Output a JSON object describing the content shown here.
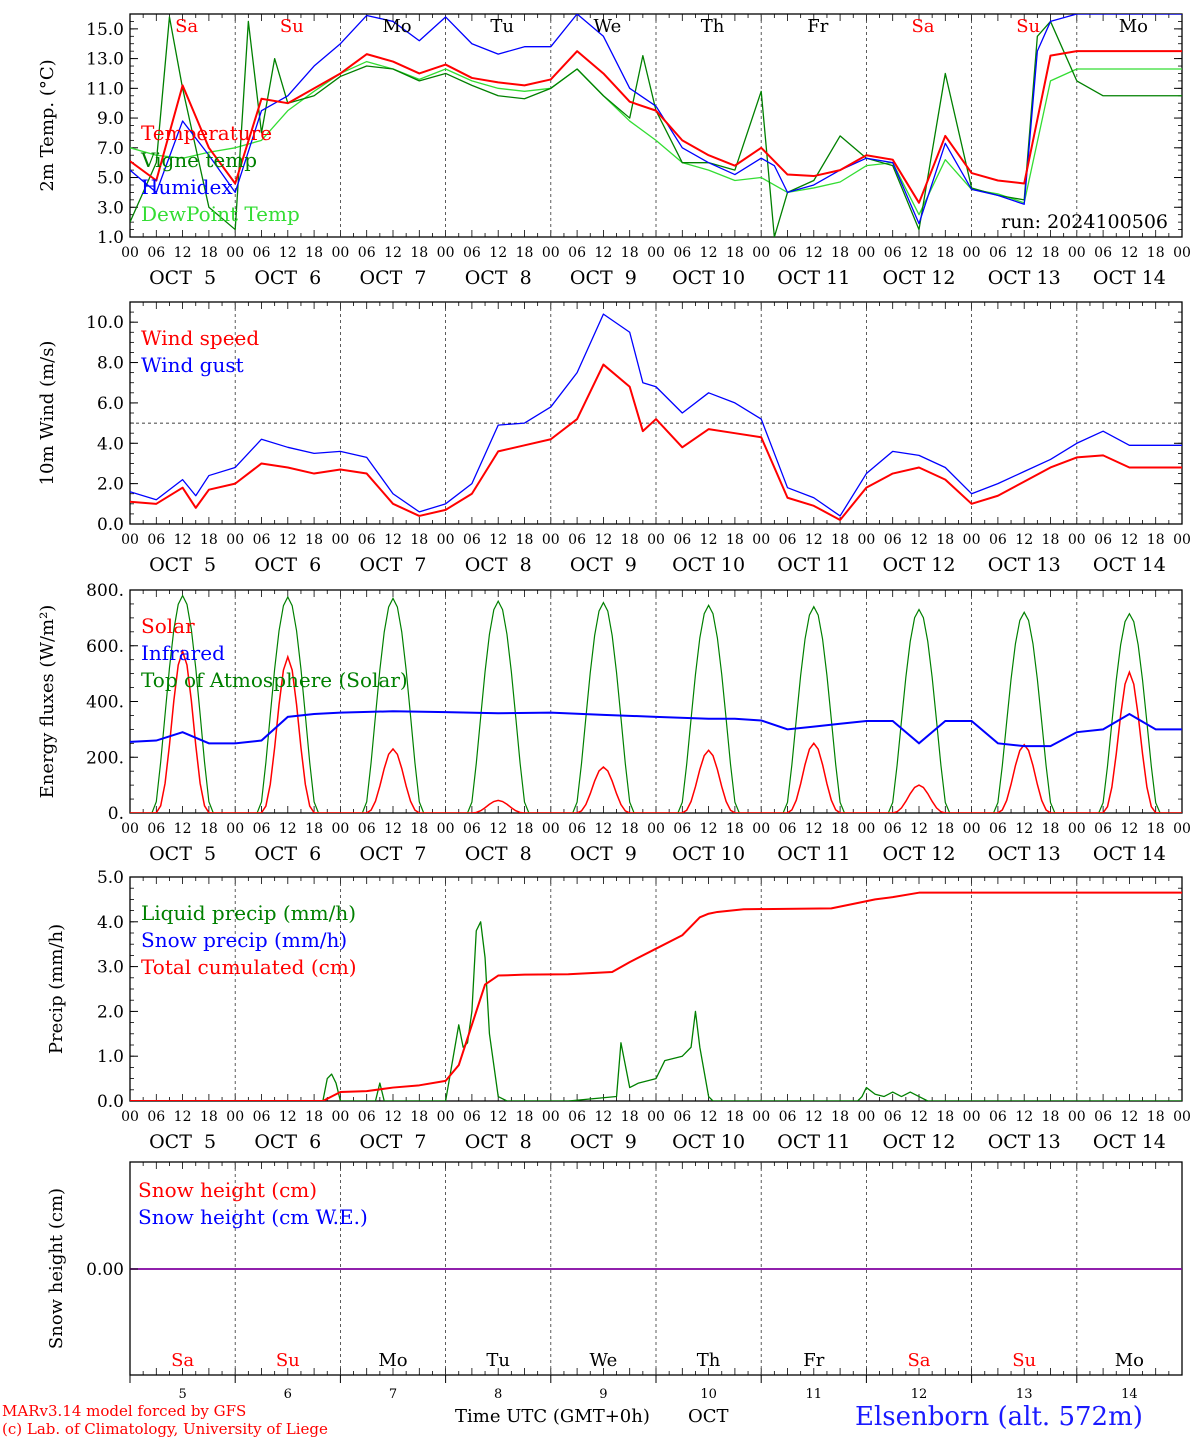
{
  "footer": {
    "model_line": "MARv3.14 model forced by GFS",
    "copyright_line": "(c) Lab. of Climatology, University of Liege",
    "x_title": "Time UTC (GMT+0h)",
    "x_month": "OCT",
    "station": "Elsenborn (alt. 572m)"
  },
  "colors": {
    "red": "#ff0000",
    "blue": "#0000ff",
    "green": "#008000",
    "lightgreen": "#33dd33",
    "purple": "#8000a0"
  },
  "days": {
    "weekdays": [
      "Sa",
      "Su",
      "Mo",
      "Tu",
      "We",
      "Th",
      "Fr",
      "Sa",
      "Su",
      "Mo"
    ],
    "weekday_colors": [
      "#ff0000",
      "#ff0000",
      "#000000",
      "#000000",
      "#000000",
      "#000000",
      "#000000",
      "#ff0000",
      "#ff0000",
      "#000000"
    ],
    "date_labels": [
      "OCT  5",
      "OCT  6",
      "OCT  7",
      "OCT  8",
      "OCT  9",
      "OCT 10",
      "OCT 11",
      "OCT 12",
      "OCT 13",
      "OCT 14"
    ],
    "day_numbers": [
      "5",
      "6",
      "7",
      "8",
      "9",
      "10",
      "11",
      "12",
      "13",
      "14"
    ],
    "hour_ticks": [
      "00",
      "06",
      "12",
      "18"
    ],
    "final_hour": "00"
  },
  "chart_data": [
    {
      "type": "line",
      "ylabel": "2m Temp. (°C)",
      "ylim": [
        1,
        16
      ],
      "yticks": [
        "1.0",
        "3.0",
        "5.0",
        "7.0",
        "9.0",
        "11.0",
        "13.0",
        "15.0"
      ],
      "annotation": "run: 2024100506",
      "series": [
        {
          "name": "Temperature",
          "color": "#ff0000",
          "x": [
            0,
            6,
            12,
            18,
            24,
            30,
            36,
            42,
            48,
            54,
            60,
            66,
            72,
            78,
            84,
            90,
            96,
            102,
            108,
            114,
            120,
            126,
            132,
            138,
            144,
            150,
            156,
            162,
            168,
            174,
            180,
            186,
            192,
            198,
            204,
            210,
            216,
            222,
            228,
            234,
            240
          ],
          "values": [
            6.1,
            4.8,
            11.2,
            7.0,
            4.6,
            10.3,
            10.0,
            11.0,
            12.0,
            13.3,
            12.8,
            12.0,
            12.6,
            11.7,
            11.4,
            11.2,
            11.6,
            13.5,
            12.0,
            10.1,
            9.5,
            7.5,
            6.5,
            5.8,
            7.0,
            5.2,
            5.1,
            5.5,
            6.5,
            6.2,
            3.3,
            7.8,
            5.3,
            4.8,
            4.6,
            13.2,
            13.5,
            13.5,
            13.5,
            13.5,
            13.5
          ]
        },
        {
          "name": "Vigne temp",
          "color": "#008000",
          "x": [
            0,
            6,
            9,
            12,
            18,
            24,
            27,
            30,
            33,
            36,
            42,
            48,
            54,
            60,
            66,
            72,
            78,
            84,
            90,
            96,
            102,
            108,
            114,
            117,
            120,
            126,
            132,
            138,
            144,
            147,
            150,
            156,
            162,
            168,
            174,
            180,
            186,
            192,
            198,
            204,
            207,
            210,
            216,
            222,
            228,
            234,
            240
          ],
          "values": [
            2.0,
            6.0,
            15.8,
            11.0,
            3.0,
            1.5,
            15.5,
            8.0,
            13.0,
            10.0,
            10.5,
            11.8,
            12.5,
            12.3,
            11.5,
            12.0,
            11.2,
            10.5,
            10.3,
            11.0,
            12.3,
            10.5,
            9.0,
            13.2,
            9.5,
            6.0,
            6.0,
            5.5,
            10.8,
            1.0,
            4.0,
            4.8,
            7.8,
            6.3,
            5.8,
            1.5,
            12.0,
            4.3,
            3.8,
            3.5,
            14.5,
            15.5,
            11.5,
            10.5,
            10.5,
            10.5,
            10.5
          ]
        },
        {
          "name": "Humidex",
          "color": "#0000ff",
          "x": [
            0,
            6,
            12,
            18,
            24,
            30,
            36,
            42,
            48,
            54,
            60,
            66,
            72,
            78,
            84,
            90,
            96,
            102,
            108,
            114,
            120,
            126,
            132,
            138,
            144,
            147,
            150,
            156,
            162,
            168,
            174,
            180,
            186,
            192,
            198,
            204,
            207,
            210,
            216,
            222,
            228,
            234,
            240
          ],
          "values": [
            5.5,
            4.0,
            8.8,
            6.5,
            4.0,
            9.5,
            10.5,
            12.5,
            14.0,
            15.9,
            15.5,
            14.2,
            15.8,
            14.0,
            13.3,
            13.8,
            13.8,
            16.0,
            14.5,
            11.0,
            9.8,
            7.0,
            6.0,
            5.2,
            6.3,
            5.8,
            4.0,
            4.5,
            5.5,
            6.3,
            6.0,
            1.9,
            7.3,
            4.2,
            3.8,
            3.2,
            13.5,
            15.5,
            16.0,
            16.0,
            16.0,
            16.0,
            16.0
          ]
        },
        {
          "name": "DewPoint Temp",
          "color": "#33dd33",
          "x": [
            0,
            6,
            12,
            18,
            24,
            30,
            36,
            42,
            48,
            54,
            60,
            66,
            72,
            78,
            84,
            90,
            96,
            102,
            108,
            114,
            120,
            126,
            132,
            138,
            144,
            150,
            156,
            162,
            168,
            174,
            180,
            186,
            192,
            198,
            204,
            210,
            216,
            222,
            228,
            234,
            240
          ],
          "values": [
            7.0,
            6.5,
            6.3,
            6.7,
            7.0,
            7.5,
            9.5,
            10.8,
            12.0,
            12.8,
            12.3,
            11.6,
            12.3,
            11.5,
            11.0,
            10.8,
            11.0,
            12.3,
            10.5,
            8.8,
            7.5,
            6.0,
            5.5,
            4.8,
            5.0,
            4.0,
            4.3,
            4.7,
            5.8,
            6.0,
            2.5,
            6.2,
            4.2,
            3.9,
            3.3,
            11.5,
            12.3,
            12.3,
            12.3,
            12.3,
            12.3
          ]
        }
      ]
    },
    {
      "type": "line",
      "ylabel": "10m Wind (m/s)",
      "ylim": [
        0,
        11
      ],
      "yticks": [
        "0.0",
        "2.0",
        "4.0",
        "6.0",
        "8.0",
        "10.0"
      ],
      "reference_line": 5.0,
      "series": [
        {
          "name": "Wind speed",
          "color": "#ff0000",
          "x": [
            0,
            6,
            12,
            15,
            18,
            24,
            30,
            36,
            42,
            48,
            54,
            60,
            66,
            72,
            78,
            84,
            90,
            96,
            102,
            108,
            114,
            117,
            120,
            126,
            132,
            138,
            144,
            150,
            156,
            162,
            168,
            174,
            180,
            186,
            192,
            198,
            204,
            210,
            216,
            222,
            228,
            234,
            240
          ],
          "values": [
            1.1,
            1.0,
            1.8,
            0.8,
            1.7,
            2.0,
            3.0,
            2.8,
            2.5,
            2.7,
            2.5,
            1.0,
            0.4,
            0.7,
            1.5,
            3.6,
            3.9,
            4.2,
            5.2,
            7.9,
            6.8,
            4.6,
            5.2,
            3.8,
            4.7,
            4.5,
            4.3,
            1.3,
            0.9,
            0.2,
            1.8,
            2.5,
            2.8,
            2.2,
            1.0,
            1.4,
            2.1,
            2.8,
            3.3,
            3.4,
            2.8,
            2.8,
            2.8
          ]
        },
        {
          "name": "Wind gust",
          "color": "#0000ff",
          "x": [
            0,
            6,
            12,
            15,
            18,
            24,
            30,
            36,
            42,
            48,
            54,
            60,
            66,
            72,
            78,
            84,
            90,
            96,
            102,
            108,
            114,
            117,
            120,
            126,
            132,
            138,
            144,
            150,
            156,
            162,
            168,
            174,
            180,
            186,
            192,
            198,
            204,
            210,
            216,
            222,
            228,
            234,
            240
          ],
          "values": [
            1.6,
            1.2,
            2.2,
            1.4,
            2.4,
            2.8,
            4.2,
            3.8,
            3.5,
            3.6,
            3.3,
            1.5,
            0.6,
            1.0,
            2.0,
            4.9,
            5.0,
            5.8,
            7.5,
            10.4,
            9.5,
            7.0,
            6.8,
            5.5,
            6.5,
            6.0,
            5.2,
            1.8,
            1.3,
            0.4,
            2.5,
            3.6,
            3.4,
            2.8,
            1.5,
            2.0,
            2.6,
            3.2,
            4.0,
            4.6,
            3.9,
            3.9,
            3.9
          ]
        }
      ]
    },
    {
      "type": "line",
      "ylabel": "Energy fluxes (W/m²)",
      "ylim": [
        0,
        800
      ],
      "yticks": [
        "0.",
        "200.",
        "400.",
        "600.",
        "800."
      ],
      "series": [
        {
          "name": "Solar",
          "color": "#ff0000",
          "noon_peaks": [
            580,
            560,
            230,
            45,
            165,
            225,
            250,
            100,
            245,
            505
          ]
        },
        {
          "name": "Infrared",
          "color": "#0000ff",
          "x": [
            0,
            6,
            12,
            18,
            24,
            30,
            36,
            42,
            48,
            60,
            72,
            84,
            96,
            108,
            120,
            132,
            138,
            144,
            150,
            156,
            162,
            168,
            174,
            180,
            186,
            192,
            198,
            204,
            210,
            216,
            222,
            228,
            234,
            240
          ],
          "values": [
            255,
            260,
            290,
            250,
            250,
            260,
            345,
            355,
            360,
            365,
            362,
            358,
            360,
            352,
            345,
            338,
            338,
            332,
            300,
            310,
            320,
            330,
            330,
            250,
            330,
            330,
            250,
            240,
            240,
            290,
            300,
            355,
            300,
            300
          ]
        },
        {
          "name": "Top of Atmosphere (Solar)",
          "color": "#008000",
          "noon_peaks": [
            780,
            775,
            770,
            760,
            755,
            745,
            740,
            730,
            720,
            715
          ]
        }
      ]
    },
    {
      "type": "line",
      "ylabel": "Precip (mm/h)",
      "ylim": [
        0,
        5
      ],
      "yticks": [
        "0.0",
        "1.0",
        "2.0",
        "3.0",
        "4.0",
        "5.0"
      ],
      "series": [
        {
          "name": "Liquid precip (mm/h)",
          "color": "#008000",
          "x": [
            0,
            44,
            45,
            46,
            47,
            48,
            56,
            57,
            58,
            72,
            75,
            76,
            77,
            78,
            79,
            80,
            81,
            82,
            84,
            86,
            88,
            100,
            111,
            112,
            113,
            114,
            116,
            120,
            122,
            126,
            128,
            129,
            130,
            132,
            133,
            134,
            140,
            160,
            166,
            167,
            168,
            170,
            172,
            174,
            176,
            178,
            180,
            182,
            240
          ],
          "values": [
            0,
            0,
            0.5,
            0.6,
            0.4,
            0,
            0,
            0.4,
            0,
            0,
            1.7,
            1.2,
            1.3,
            2.0,
            3.8,
            4.0,
            3.2,
            1.5,
            0.1,
            0,
            0,
            0,
            0.1,
            1.3,
            0.8,
            0.3,
            0.4,
            0.5,
            0.9,
            1.0,
            1.2,
            2.0,
            1.2,
            0.1,
            0,
            0,
            0,
            0,
            0,
            0.1,
            0.3,
            0.15,
            0.1,
            0.2,
            0.1,
            0.2,
            0.1,
            0,
            0
          ]
        },
        {
          "name": "Snow precip (mm/h)",
          "color": "#0000ff",
          "values": []
        },
        {
          "name": "Total cumulated (cm)",
          "color": "#ff0000",
          "x": [
            0,
            44,
            46,
            48,
            54,
            60,
            66,
            72,
            75,
            78,
            81,
            84,
            90,
            100,
            110,
            114,
            120,
            126,
            128,
            130,
            132,
            134,
            140,
            160,
            166,
            170,
            174,
            180,
            240
          ],
          "values": [
            0,
            0,
            0.1,
            0.2,
            0.22,
            0.3,
            0.35,
            0.45,
            0.8,
            1.7,
            2.6,
            2.8,
            2.82,
            2.83,
            2.88,
            3.1,
            3.4,
            3.7,
            3.9,
            4.1,
            4.18,
            4.22,
            4.28,
            4.3,
            4.42,
            4.5,
            4.55,
            4.65,
            4.65
          ]
        }
      ]
    },
    {
      "type": "line",
      "ylabel": "Snow height (cm)",
      "yticks": [
        "0.00"
      ],
      "series": [
        {
          "name": "Snow height (cm)",
          "color": "#ff0000",
          "values": [
            0
          ]
        },
        {
          "name": "Snow height (cm W.E.)",
          "color": "#0000ff",
          "values": [
            0
          ]
        }
      ]
    }
  ]
}
